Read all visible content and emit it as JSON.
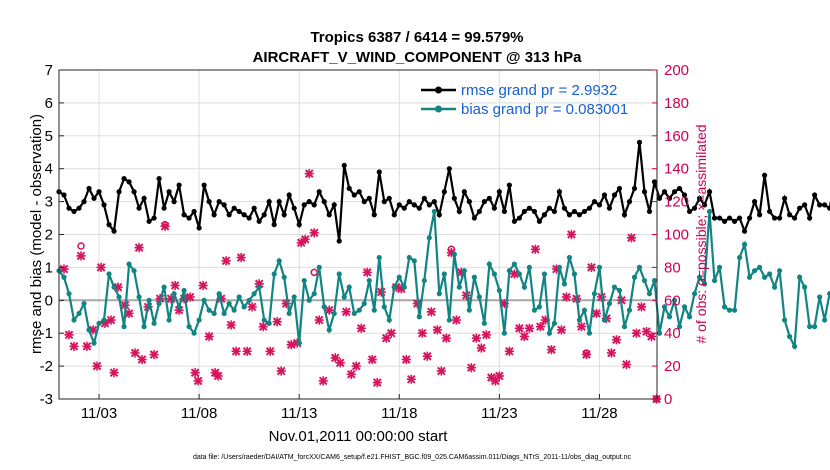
{
  "chart_data": {
    "type": "line",
    "title": "Tropics 6387 / 6414 = 99.579%",
    "subtitle": "AIRCRAFT_V_WIND_COMPONENT @ 313 hPa",
    "xlabel": "Nov.01,2011 00:00:00 start",
    "ylabel": "rmse and bias (model - observation)",
    "ylabel_right": "# of obs: o=possible; ×=assimilated",
    "footer": "data file: /Users/raeder/DAI/ATM_forcXX/CAM6_setup/f.e21.FHIST_BGC.f09_025.CAM6assim.011/Diags_NTrS_2011-11/obs_diag_output.nc",
    "xlim": [
      1.0,
      30.875
    ],
    "ylim": [
      -3,
      7
    ],
    "ylim_right": [
      0,
      200
    ],
    "x_tick_values": [
      3,
      8,
      13,
      18,
      23,
      28
    ],
    "x_tick_labels": [
      "11/03",
      "11/08",
      "11/13",
      "11/18",
      "11/23",
      "11/28"
    ],
    "y_ticks": [
      -3,
      -2,
      -1,
      0,
      1,
      2,
      3,
      4,
      5,
      6,
      7
    ],
    "y_ticks_right": [
      0,
      20,
      40,
      60,
      80,
      100,
      120,
      140,
      160,
      180,
      200
    ],
    "zero_line": 0,
    "x_start": 1.0,
    "x_step": 0.25,
    "legend": [
      {
        "name": "rmse grand pr = 2.9932",
        "color": "#000000"
      },
      {
        "name": "bias grand pr = 0.083001",
        "color": "#138484"
      }
    ],
    "series": [
      {
        "name": "rmse",
        "color": "#000000",
        "values": [
          3.3,
          3.2,
          2.8,
          2.7,
          2.8,
          3.0,
          3.4,
          3.1,
          3.3,
          2.9,
          2.3,
          2.1,
          3.3,
          3.7,
          3.6,
          3.3,
          2.8,
          3.1,
          2.4,
          2.5,
          3.7,
          2.8,
          3.3,
          3.0,
          3.5,
          2.6,
          2.5,
          2.7,
          2.2,
          3.5,
          3.0,
          2.6,
          3.0,
          2.9,
          2.6,
          2.8,
          2.7,
          2.6,
          2.5,
          2.8,
          2.4,
          2.6,
          3.0,
          2.3,
          3.0,
          2.6,
          3.2,
          2.8,
          2.3,
          2.9,
          3.0,
          2.9,
          3.3,
          3.0,
          2.6,
          2.9,
          1.8,
          4.1,
          3.4,
          3.2,
          3.3,
          3.0,
          3.1,
          2.6,
          3.9,
          3.0,
          3.1,
          2.6,
          2.9,
          2.8,
          3.0,
          2.9,
          2.8,
          3.1,
          2.9,
          3.0,
          2.6,
          3.3,
          4.0,
          3.1,
          2.7,
          3.3,
          3.0,
          2.5,
          2.7,
          3.0,
          3.1,
          2.8,
          3.3,
          2.7,
          3.5,
          2.4,
          2.5,
          2.7,
          2.8,
          2.7,
          2.4,
          2.6,
          2.8,
          2.7,
          3.3,
          2.8,
          2.6,
          2.7,
          2.6,
          2.7,
          2.8,
          3.0,
          2.9,
          3.2,
          2.8,
          3.2,
          3.4,
          2.6,
          3.0,
          3.4,
          4.8,
          3.3,
          2.7,
          3.6,
          3.1,
          3.3,
          3.1,
          3.3,
          3.4,
          3.2,
          2.7,
          2.8,
          3.1,
          2.9,
          3.3,
          2.5,
          2.5,
          2.4,
          2.5,
          2.4,
          2.5,
          2.1,
          2.5,
          3.0,
          2.6,
          3.8,
          2.7,
          2.5,
          2.5,
          3.1,
          2.6,
          2.5,
          2.8,
          2.9,
          2.5,
          3.2,
          2.9,
          2.9,
          2.8,
          3.6,
          2.7,
          3.3,
          3.3,
          2.7,
          3.1,
          2.9,
          2.4,
          3.2,
          3.4,
          3.0,
          4.0,
          2.7,
          3.1,
          2.9,
          2.6,
          3.3,
          2.5,
          2.5,
          3.1,
          3.0,
          2.7,
          3.1,
          3.0,
          3.3,
          3.2,
          3.2,
          3.1,
          3.3,
          3.4,
          3.3,
          2.9,
          3.1,
          2.1,
          3.5,
          3.0,
          2.9
        ]
      },
      {
        "name": "bias",
        "color": "#138484",
        "values": [
          0.9,
          0.7,
          0.2,
          -0.6,
          -0.4,
          -0.1,
          -0.9,
          -1.3,
          -0.7,
          -0.6,
          0.8,
          0.4,
          0.1,
          -0.8,
          1.1,
          0.9,
          0.1,
          -0.8,
          0.0,
          -0.7,
          -0.1,
          0.4,
          -0.6,
          0.2,
          -0.2,
          0.3,
          -0.8,
          -1.0,
          -0.6,
          0.0,
          -0.3,
          -0.4,
          0.2,
          -0.4,
          -0.1,
          -0.3,
          0.1,
          -0.2,
          0.0,
          0.2,
          0.4,
          -0.6,
          -0.7,
          0.8,
          1.2,
          0.7,
          -0.4,
          0.1,
          -1.3,
          0.6,
          0.0,
          0.2,
          1.0,
          -0.2,
          -0.9,
          -0.4,
          0.8,
          0.1,
          0.4,
          -0.4,
          -0.3,
          -0.1,
          0.6,
          -0.3,
          1.3,
          -0.2,
          -0.6,
          0.4,
          0.7,
          0.4,
          1.3,
          1.2,
          -0.5,
          0.6,
          1.9,
          2.7,
          0.2,
          0.8,
          -0.6,
          1.4,
          0.4,
          0.9,
          -0.3,
          0.7,
          0.1,
          -0.7,
          1.1,
          0.8,
          0.3,
          -1.0,
          0.9,
          1.1,
          0.8,
          0.4,
          1.0,
          -0.3,
          -0.2,
          0.8,
          -1.0,
          -0.7,
          1.0,
          0.5,
          1.3,
          0.8,
          -0.6,
          -0.3,
          -1.0,
          0.2,
          1.0,
          -0.6,
          -0.1,
          0.4,
          0.3,
          -0.8,
          -0.3,
          0.7,
          1.0,
          0.6,
          0.2,
          0.6,
          -1.0,
          -0.2,
          -0.5,
          0.0,
          -0.8,
          -0.2,
          -0.5,
          0.2,
          0.7,
          0.5,
          2.7,
          0.6,
          1.0,
          -0.2,
          -0.3,
          -0.3,
          1.3,
          1.7,
          0.7,
          0.9,
          1.0,
          0.7,
          0.8,
          0.4,
          0.9,
          -0.6,
          -1.1,
          -1.4,
          0.7,
          0.4,
          -0.8,
          -0.8,
          0.1,
          -0.6,
          0.2,
          0.0,
          -0.5,
          0.5,
          0.9,
          0.1,
          -1.5,
          -0.6,
          0.9,
          0.6,
          -0.1,
          -0.9,
          0.3,
          -0.9,
          -0.4,
          -0.2,
          0.7,
          0.2,
          0.9,
          0.8,
          1.1,
          0.9,
          0.0,
          1.1,
          0.2,
          -0.9,
          -1.4,
          -2.2,
          -0.2,
          1.0,
          -0.5,
          -1.0,
          0.6,
          0.3,
          -0.6,
          -0.4,
          0.6,
          0.2,
          0.0,
          -0.4,
          0.6,
          0.9,
          0.3,
          -0.4,
          0.6,
          0.1,
          1.6,
          0.3,
          -0.8,
          -1.8,
          -1.0,
          0.1,
          0.0,
          -0.5,
          1.2,
          -0.1,
          -1.0,
          -0.7
        ]
      }
    ],
    "obs_assimilated": [
      {
        "x": 1.25,
        "n": 79
      },
      {
        "x": 1.5,
        "n": 39
      },
      {
        "x": 1.75,
        "n": 32
      },
      {
        "x": 2.1,
        "n": 87
      },
      {
        "x": 2.4,
        "n": 32
      },
      {
        "x": 2.7,
        "n": 42
      },
      {
        "x": 2.9,
        "n": 20
      },
      {
        "x": 3.1,
        "n": 80
      },
      {
        "x": 3.3,
        "n": 46
      },
      {
        "x": 3.6,
        "n": 48
      },
      {
        "x": 3.75,
        "n": 16
      },
      {
        "x": 3.95,
        "n": 68
      },
      {
        "x": 4.3,
        "n": 57
      },
      {
        "x": 4.5,
        "n": 52
      },
      {
        "x": 4.8,
        "n": 28
      },
      {
        "x": 5.0,
        "n": 92
      },
      {
        "x": 5.15,
        "n": 24
      },
      {
        "x": 5.45,
        "n": 56
      },
      {
        "x": 5.75,
        "n": 27
      },
      {
        "x": 6.05,
        "n": 61
      },
      {
        "x": 6.3,
        "n": 105
      },
      {
        "x": 6.6,
        "n": 61
      },
      {
        "x": 6.8,
        "n": 69
      },
      {
        "x": 7.0,
        "n": 54
      },
      {
        "x": 7.25,
        "n": 61
      },
      {
        "x": 7.55,
        "n": 62
      },
      {
        "x": 7.8,
        "n": 16
      },
      {
        "x": 7.95,
        "n": 11
      },
      {
        "x": 8.2,
        "n": 69
      },
      {
        "x": 8.5,
        "n": 38
      },
      {
        "x": 8.8,
        "n": 16
      },
      {
        "x": 8.95,
        "n": 14
      },
      {
        "x": 9.1,
        "n": 61
      },
      {
        "x": 9.35,
        "n": 84
      },
      {
        "x": 9.6,
        "n": 45
      },
      {
        "x": 9.85,
        "n": 29
      },
      {
        "x": 10.1,
        "n": 86
      },
      {
        "x": 10.4,
        "n": 29
      },
      {
        "x": 10.65,
        "n": 56
      },
      {
        "x": 11.0,
        "n": 70
      },
      {
        "x": 11.2,
        "n": 44
      },
      {
        "x": 11.55,
        "n": 29
      },
      {
        "x": 11.9,
        "n": 47
      },
      {
        "x": 12.1,
        "n": 17
      },
      {
        "x": 12.35,
        "n": 58
      },
      {
        "x": 12.6,
        "n": 33
      },
      {
        "x": 12.9,
        "n": 34
      },
      {
        "x": 13.1,
        "n": 95
      },
      {
        "x": 13.3,
        "n": 97
      },
      {
        "x": 13.5,
        "n": 137
      },
      {
        "x": 13.75,
        "n": 101
      },
      {
        "x": 14.0,
        "n": 48
      },
      {
        "x": 14.2,
        "n": 11
      },
      {
        "x": 14.5,
        "n": 54
      },
      {
        "x": 14.8,
        "n": 25
      },
      {
        "x": 15.05,
        "n": 22
      },
      {
        "x": 15.35,
        "n": 53
      },
      {
        "x": 15.6,
        "n": 15
      },
      {
        "x": 15.85,
        "n": 20
      },
      {
        "x": 16.1,
        "n": 43
      },
      {
        "x": 16.4,
        "n": 77
      },
      {
        "x": 16.65,
        "n": 24
      },
      {
        "x": 16.9,
        "n": 10
      },
      {
        "x": 17.1,
        "n": 65
      },
      {
        "x": 17.35,
        "n": 37
      },
      {
        "x": 17.6,
        "n": 40
      },
      {
        "x": 17.85,
        "n": 68
      },
      {
        "x": 18.1,
        "n": 67
      },
      {
        "x": 18.35,
        "n": 24
      },
      {
        "x": 18.6,
        "n": 12
      },
      {
        "x": 18.9,
        "n": 58
      },
      {
        "x": 19.15,
        "n": 40
      },
      {
        "x": 19.4,
        "n": 26
      },
      {
        "x": 19.6,
        "n": 53
      },
      {
        "x": 19.9,
        "n": 42
      },
      {
        "x": 20.1,
        "n": 17
      },
      {
        "x": 20.35,
        "n": 37
      },
      {
        "x": 20.6,
        "n": 89
      },
      {
        "x": 20.85,
        "n": 48
      },
      {
        "x": 21.1,
        "n": 77
      },
      {
        "x": 21.35,
        "n": 63
      },
      {
        "x": 21.6,
        "n": 19
      },
      {
        "x": 21.85,
        "n": 37
      },
      {
        "x": 22.1,
        "n": 31
      },
      {
        "x": 22.35,
        "n": 39
      },
      {
        "x": 22.6,
        "n": 13
      },
      {
        "x": 22.8,
        "n": 11
      },
      {
        "x": 23.0,
        "n": 14
      },
      {
        "x": 23.25,
        "n": 58
      },
      {
        "x": 23.5,
        "n": 29
      },
      {
        "x": 23.75,
        "n": 76
      },
      {
        "x": 24.0,
        "n": 43
      },
      {
        "x": 24.25,
        "n": 38
      },
      {
        "x": 24.5,
        "n": 43
      },
      {
        "x": 24.8,
        "n": 91
      },
      {
        "x": 25.05,
        "n": 44
      },
      {
        "x": 25.3,
        "n": 48
      },
      {
        "x": 25.6,
        "n": 30
      },
      {
        "x": 25.85,
        "n": 79
      },
      {
        "x": 26.1,
        "n": 42
      },
      {
        "x": 26.35,
        "n": 62
      },
      {
        "x": 26.6,
        "n": 100
      },
      {
        "x": 26.85,
        "n": 61
      },
      {
        "x": 27.1,
        "n": 44
      },
      {
        "x": 27.35,
        "n": 27
      },
      {
        "x": 27.6,
        "n": 80
      },
      {
        "x": 27.85,
        "n": 52
      },
      {
        "x": 28.1,
        "n": 62
      },
      {
        "x": 28.35,
        "n": 49
      },
      {
        "x": 28.6,
        "n": 28
      },
      {
        "x": 28.85,
        "n": 36
      },
      {
        "x": 29.1,
        "n": 60
      },
      {
        "x": 29.35,
        "n": 21
      },
      {
        "x": 29.6,
        "n": 98
      },
      {
        "x": 29.85,
        "n": 40
      },
      {
        "x": 30.1,
        "n": 56
      },
      {
        "x": 30.35,
        "n": 41
      },
      {
        "x": 30.6,
        "n": 38
      },
      {
        "x": 30.85,
        "n": 0
      }
    ],
    "obs_possible": [
      {
        "x": 2.1,
        "n": 93
      },
      {
        "x": 6.3,
        "n": 106
      },
      {
        "x": 13.75,
        "n": 77
      },
      {
        "x": 20.6,
        "n": 91
      },
      {
        "x": 27.35,
        "n": 28
      },
      {
        "x": 30.85,
        "n": 0
      }
    ]
  }
}
